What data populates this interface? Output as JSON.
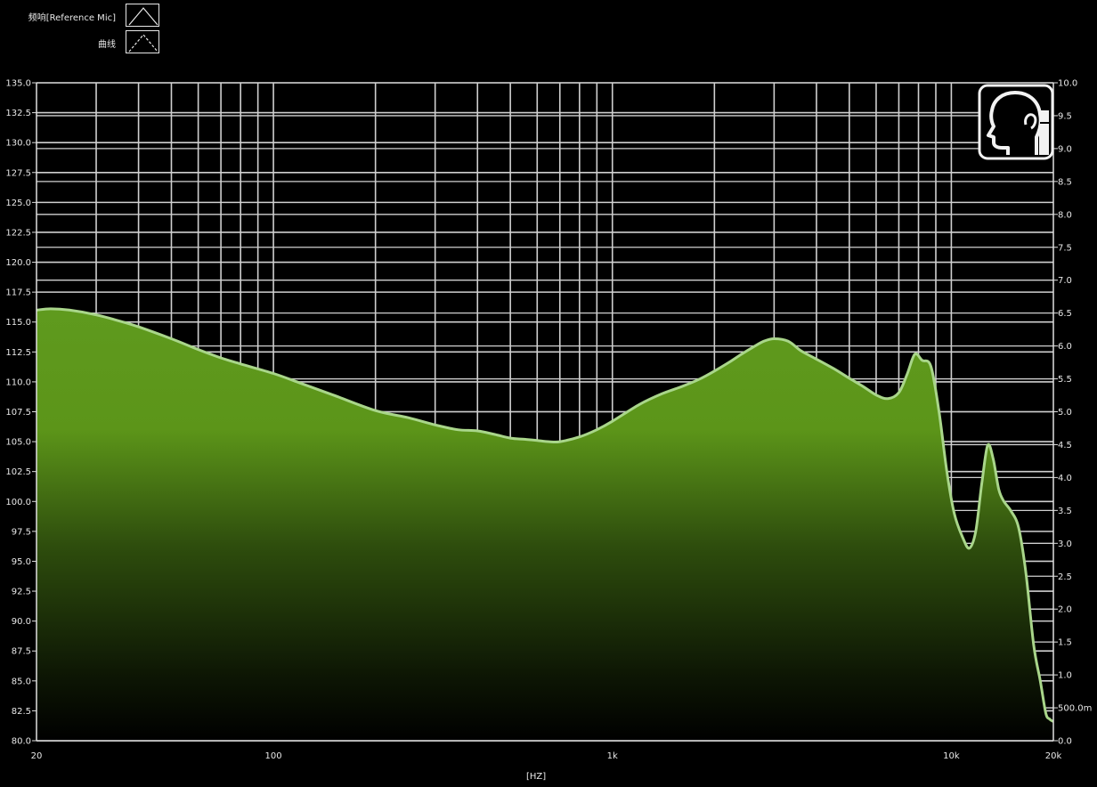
{
  "legend": {
    "items": [
      {
        "label": "频响[Reference Mic]",
        "style": "solid"
      },
      {
        "label": "曲线",
        "style": "dashed"
      }
    ]
  },
  "icons": {
    "badge": "head-ear-icon"
  },
  "colors": {
    "background": "#000000",
    "fill_top": "#5f9a1e",
    "fill_bottom": "#000000",
    "curve_stroke": "#a9d68a",
    "grid": "#cfcfcf"
  },
  "chart_data": {
    "type": "area",
    "xscale": "log",
    "xlabel": "[HZ]",
    "xlim": [
      20,
      20000
    ],
    "ylim": [
      80,
      135
    ],
    "y2lim": [
      0,
      10
    ],
    "x_ticks": [
      "20",
      "100",
      "1k",
      "10k",
      "20k"
    ],
    "y_ticks": [
      "135.0",
      "132.5",
      "130.0",
      "127.5",
      "125.0",
      "122.5",
      "120.0",
      "117.5",
      "115.0",
      "112.5",
      "110.0",
      "107.5",
      "105.0",
      "102.5",
      "100.0",
      "97.5",
      "95.0",
      "92.5",
      "90.0",
      "87.5",
      "85.0",
      "82.5",
      "80.0"
    ],
    "y2_ticks": [
      "10.0",
      "9.5",
      "9.0",
      "8.5",
      "8.0",
      "7.5",
      "7.0",
      "6.5",
      "6.0",
      "5.5",
      "5.0",
      "4.5",
      "4.0",
      "3.5",
      "3.0",
      "2.5",
      "2.0",
      "1.5",
      "1.0",
      "500.0m",
      "0.0"
    ],
    "grid": true,
    "series": [
      {
        "name": "频响[Reference Mic]",
        "x": [
          20,
          22,
          25,
          30,
          35,
          40,
          50,
          60,
          70,
          80,
          100,
          120,
          150,
          200,
          250,
          300,
          350,
          400,
          450,
          500,
          550,
          600,
          650,
          700,
          800,
          900,
          1000,
          1200,
          1400,
          1600,
          1800,
          2000,
          2200,
          2400,
          2600,
          2800,
          3000,
          3300,
          3600,
          4000,
          4500,
          5000,
          5500,
          6000,
          6500,
          7000,
          7400,
          7800,
          8200,
          8700,
          9200,
          9700,
          10200,
          10800,
          11300,
          11800,
          12300,
          12800,
          13300,
          13800,
          14300,
          15000,
          15800,
          16600,
          17500,
          18300,
          19000,
          19500,
          20000
        ],
        "y": [
          116.0,
          116.1,
          116.0,
          115.6,
          115.1,
          114.6,
          113.6,
          112.7,
          112.0,
          111.5,
          110.7,
          109.9,
          108.9,
          107.6,
          107.0,
          106.4,
          106.0,
          105.9,
          105.6,
          105.3,
          105.2,
          105.1,
          105.0,
          105.0,
          105.4,
          106.0,
          106.7,
          108.1,
          109.0,
          109.6,
          110.2,
          110.9,
          111.6,
          112.3,
          112.9,
          113.4,
          113.6,
          113.4,
          112.6,
          111.9,
          111.1,
          110.3,
          109.6,
          108.9,
          108.6,
          109.1,
          110.6,
          112.3,
          111.8,
          111.3,
          107.5,
          102.5,
          99.0,
          97.0,
          96.1,
          97.5,
          101.5,
          104.7,
          103.5,
          101.0,
          100.0,
          99.2,
          97.8,
          94.0,
          88.0,
          85.0,
          82.3,
          81.8,
          81.6
        ]
      }
    ]
  }
}
